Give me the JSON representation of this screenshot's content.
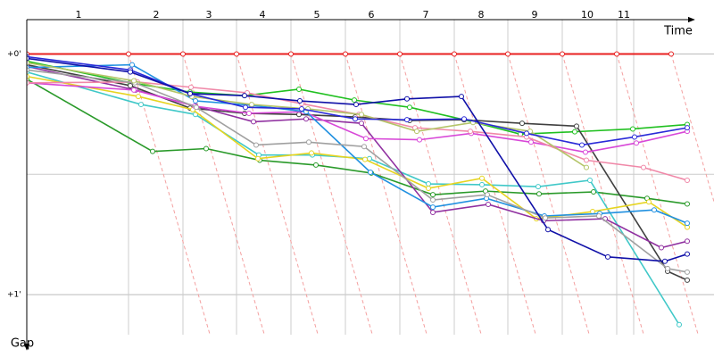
{
  "chart_data": {
    "type": "line",
    "x_label": "Time",
    "y_label": "Gap",
    "xlim": [
      0,
      740
    ],
    "ylim": [
      -9,
      70
    ],
    "xticks": [
      {
        "value": 58,
        "label": "1"
      },
      {
        "value": 145,
        "label": "2"
      },
      {
        "value": 204,
        "label": "3"
      },
      {
        "value": 264,
        "label": "4"
      },
      {
        "value": 325,
        "label": "5"
      },
      {
        "value": 386,
        "label": "6"
      },
      {
        "value": 447,
        "label": "7"
      },
      {
        "value": 509,
        "label": "8"
      },
      {
        "value": 569,
        "label": "9"
      },
      {
        "value": 628,
        "label": "10"
      },
      {
        "value": 669,
        "label": "11"
      }
    ],
    "x_grid": [
      114,
      175,
      235,
      296,
      357,
      418,
      479,
      539,
      600,
      661,
      680
    ],
    "yticks": [
      {
        "value": 0,
        "label": "+0'"
      },
      {
        "value": 60,
        "label": "+1'"
      }
    ],
    "minor_yticks": [
      30
    ],
    "series": [
      {
        "color": "#e82020",
        "x": [
          0,
          114,
          175,
          235,
          296,
          357,
          418,
          479,
          539,
          600,
          661,
          722
        ],
        "values": [
          0,
          0,
          0,
          0,
          0,
          0,
          0,
          0,
          0,
          0,
          0,
          0
        ]
      },
      {
        "color": "#20c020",
        "x": [
          0,
          116,
          183,
          244,
          305,
          367,
          429,
          490,
          553,
          614,
          679,
          740
        ],
        "values": [
          1.8,
          7.2,
          9.5,
          10.4,
          8.8,
          11.5,
          13.3,
          16.4,
          20.0,
          19.4,
          18.7,
          17.6
        ]
      },
      {
        "color": "#2a9a2a",
        "x": [
          0,
          141,
          201,
          261,
          324,
          386,
          455,
          514,
          574,
          635,
          695,
          740
        ],
        "values": [
          6.3,
          24.3,
          23.6,
          26.5,
          27.7,
          29.7,
          35.1,
          34.2,
          34.9,
          34.4,
          36.0,
          37.4
        ]
      },
      {
        "color": "#404040",
        "x": [
          0,
          116,
          183,
          244,
          305,
          368,
          429,
          490,
          555,
          616,
          718,
          740
        ],
        "values": [
          2.7,
          7.9,
          13.5,
          14.8,
          15.1,
          15.7,
          16.6,
          16.4,
          17.3,
          18.0,
          54.2,
          56.4
        ]
      },
      {
        "color": "#40c8c8",
        "x": [
          0,
          128,
          189,
          260,
          320,
          384,
          450,
          510,
          573,
          631,
          731
        ],
        "values": [
          4.5,
          12.6,
          15.1,
          25.2,
          25.2,
          26.1,
          32.4,
          32.6,
          33.1,
          31.5,
          67.5
        ]
      },
      {
        "color": "#e6d420",
        "x": [
          0,
          125,
          186,
          259,
          319,
          379,
          450,
          510,
          571,
          634,
          697,
          740
        ],
        "values": [
          5.6,
          10.6,
          13.9,
          26.1,
          24.7,
          26.3,
          33.5,
          31.0,
          41.1,
          39.3,
          36.9,
          43.2
        ]
      },
      {
        "color": "#9030a0",
        "x": [
          0,
          122,
          189,
          254,
          313,
          375,
          455,
          517,
          579,
          648,
          711,
          740
        ],
        "values": [
          3.1,
          9.0,
          13.0,
          16.9,
          16.2,
          17.3,
          39.5,
          37.5,
          41.6,
          41.1,
          48.3,
          46.7
        ]
      },
      {
        "color": "#d848d8",
        "x": [
          0,
          120,
          188,
          249,
          310,
          380,
          440,
          498,
          565,
          626,
          683,
          740
        ],
        "values": [
          7.2,
          9.0,
          13.0,
          14.8,
          14.4,
          21.1,
          21.4,
          19.8,
          22.0,
          24.5,
          22.2,
          19.3
        ]
      },
      {
        "color": "#f088a8",
        "x": [
          0,
          124,
          184,
          247,
          308,
          372,
          435,
          497,
          560,
          627,
          691,
          740
        ],
        "values": [
          7.2,
          7.0,
          8.3,
          9.7,
          12.4,
          15.1,
          18.4,
          19.3,
          20.7,
          26.5,
          28.3,
          31.5
        ]
      },
      {
        "color": "#2090e0",
        "x": [
          0,
          118,
          189,
          252,
          313,
          385,
          455,
          515,
          580,
          642,
          703,
          740
        ],
        "values": [
          3.4,
          2.7,
          11.7,
          12.8,
          14.4,
          29.5,
          38.2,
          36.0,
          40.4,
          39.8,
          38.9,
          42.2
        ]
      },
      {
        "color": "#a0a0a0",
        "x": [
          0,
          121,
          190,
          257,
          316,
          378,
          455,
          516,
          581,
          641,
          718,
          740
        ],
        "values": [
          4.0,
          7.2,
          13.3,
          22.7,
          22.0,
          23.1,
          36.4,
          35.1,
          40.9,
          40.4,
          53.5,
          54.4
        ]
      },
      {
        "color": "#b4c468",
        "x": [
          0,
          120,
          185,
          252,
          315,
          375,
          437,
          500,
          564,
          627
        ],
        "values": [
          2.2,
          6.7,
          10.6,
          12.6,
          13.7,
          15.1,
          19.3,
          17.1,
          19.3,
          28.3
        ]
      },
      {
        "color": "#2a2ad8",
        "x": [
          0,
          116,
          183,
          245,
          308,
          368,
          426,
          490,
          560,
          622,
          681,
          740
        ],
        "values": [
          0.7,
          4.0,
          9.9,
          13.3,
          13.7,
          16.2,
          16.4,
          16.2,
          19.8,
          22.7,
          20.7,
          18.4
        ]
      },
      {
        "color": "#1010a8",
        "x": [
          0,
          116,
          183,
          244,
          306,
          369,
          426,
          487,
          584,
          651,
          715,
          740
        ],
        "values": [
          1.1,
          4.5,
          9.9,
          10.4,
          11.7,
          12.6,
          11.2,
          10.6,
          43.8,
          50.6,
          51.7,
          49.9
        ]
      }
    ]
  }
}
